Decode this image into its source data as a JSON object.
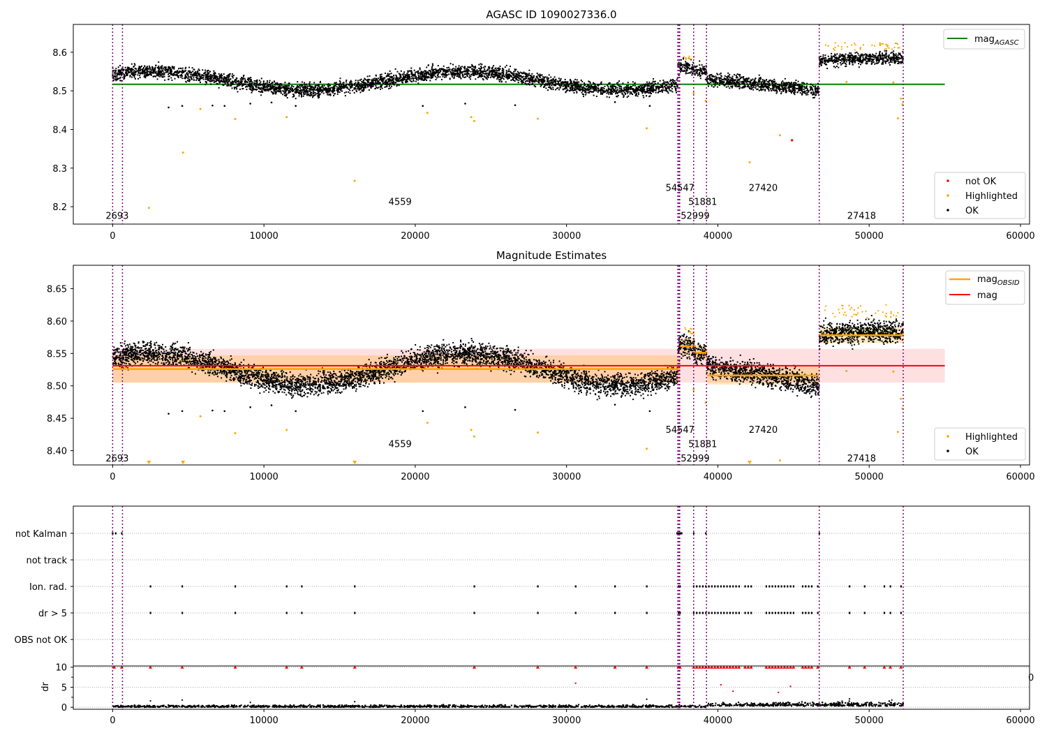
{
  "chart_data": [
    {
      "type": "scatter",
      "title": "AGASC ID 1090027336.0",
      "xlim": [
        -2600,
        60600
      ],
      "ylim": [
        8.155,
        8.672
      ],
      "x_ticks": [
        0,
        10000,
        20000,
        30000,
        40000,
        50000,
        60000
      ],
      "x_tick_labels": [
        "0",
        "10000",
        "20000",
        "30000",
        "40000",
        "50000",
        "60000"
      ],
      "y_ticks": [
        8.2,
        8.3,
        8.4,
        8.5,
        8.6
      ],
      "y_tick_labels": [
        "8.2",
        "8.3",
        "8.4",
        "8.5",
        "8.6"
      ],
      "legend_upper": {
        "position": "upper-right",
        "entries": [
          {
            "label": "mag",
            "subscript": "AGASC",
            "color": "#008000"
          }
        ]
      },
      "legend_lower": {
        "position": "lower-right",
        "entries": [
          {
            "label": "not OK",
            "color": "#ff0000"
          },
          {
            "label": "Highlighted",
            "color": "#ffa500"
          },
          {
            "label": "OK",
            "color": "#000000"
          }
        ]
      },
      "reference_line": {
        "name": "mag_AGASC",
        "y": 8.517,
        "x_range": [
          0,
          55000
        ],
        "color": "#008000"
      },
      "obsid_labels": [
        {
          "text": "2693",
          "x": 300,
          "y": 8.178
        },
        {
          "text": "4559",
          "x": 19000,
          "y": 8.214
        },
        {
          "text": "54547",
          "x": 37500,
          "y": 8.25
        },
        {
          "text": "51881",
          "x": 39000,
          "y": 8.214
        },
        {
          "text": "52999",
          "x": 38500,
          "y": 8.178
        },
        {
          "text": "27420",
          "x": 43000,
          "y": 8.25
        },
        {
          "text": "27418",
          "x": 49500,
          "y": 8.178
        }
      ],
      "highlighted_points": [
        [
          2400,
          8.197
        ],
        [
          4650,
          8.34
        ],
        [
          5800,
          8.453
        ],
        [
          8100,
          8.427
        ],
        [
          11500,
          8.432
        ],
        [
          16000,
          8.267
        ],
        [
          20800,
          8.443
        ],
        [
          23700,
          8.432
        ],
        [
          23900,
          8.422
        ],
        [
          28100,
          8.428
        ],
        [
          35300,
          8.403
        ],
        [
          38400,
          8.494
        ],
        [
          39200,
          8.474
        ],
        [
          42100,
          8.315
        ],
        [
          44100,
          8.385
        ],
        [
          48500,
          8.523
        ],
        [
          51600,
          8.522
        ],
        [
          51900,
          8.429
        ],
        [
          52100,
          8.48
        ],
        [
          52200,
          8.465
        ]
      ],
      "not_ok_points": [
        [
          44900,
          8.372
        ]
      ],
      "ok_outliers": [
        [
          3700,
          8.457
        ],
        [
          4600,
          8.461
        ],
        [
          6600,
          8.462
        ],
        [
          7400,
          8.461
        ],
        [
          9100,
          8.467
        ],
        [
          10500,
          8.47
        ],
        [
          12100,
          8.461
        ],
        [
          20500,
          8.461
        ],
        [
          23300,
          8.467
        ],
        [
          26600,
          8.463
        ],
        [
          33200,
          8.471
        ],
        [
          35500,
          8.461
        ]
      ]
    },
    {
      "type": "scatter",
      "title": "Magnitude Estimates",
      "xlim": [
        -2600,
        60600
      ],
      "ylim": [
        8.378,
        8.686
      ],
      "x_ticks": [
        0,
        10000,
        20000,
        30000,
        40000,
        50000,
        60000
      ],
      "x_tick_labels": [
        "0",
        "10000",
        "20000",
        "30000",
        "40000",
        "50000",
        "60000"
      ],
      "y_ticks": [
        8.4,
        8.45,
        8.5,
        8.55,
        8.6,
        8.65
      ],
      "y_tick_labels": [
        "8.40",
        "8.45",
        "8.50",
        "8.55",
        "8.60",
        "8.65"
      ],
      "legend_upper": {
        "position": "upper-right",
        "entries": [
          {
            "label": "mag",
            "subscript": "OBSID",
            "color": "#ffa500"
          },
          {
            "label": "mag",
            "color": "#ff0000"
          }
        ]
      },
      "legend_lower": {
        "position": "lower-right",
        "entries": [
          {
            "label": "Highlighted",
            "color": "#ffa500"
          },
          {
            "label": "OK",
            "color": "#000000"
          }
        ]
      },
      "mean_line": {
        "name": "mag",
        "y": 8.531,
        "x_range": [
          0,
          55000
        ],
        "band": [
          8.505,
          8.557
        ],
        "color": "#ff0000"
      },
      "obsid_segments": [
        {
          "x_range": [
            0,
            37500
          ],
          "mag": 8.526,
          "band": [
            8.505,
            8.547
          ]
        },
        {
          "x_range": [
            37500,
            38500
          ],
          "mag": 8.561,
          "band": [
            8.548,
            8.574
          ]
        },
        {
          "x_range": [
            38500,
            39300
          ],
          "mag": 8.551,
          "band": [
            8.54,
            8.562
          ]
        },
        {
          "x_range": [
            39300,
            46700
          ],
          "mag": 8.516,
          "band": [
            8.502,
            8.53
          ]
        },
        {
          "x_range": [
            46700,
            52300
          ],
          "mag": 8.578,
          "band": [
            8.566,
            8.59
          ]
        }
      ],
      "obsid_labels": [
        {
          "text": "2693",
          "x": 300,
          "y": 8.389
        },
        {
          "text": "4559",
          "x": 19000,
          "y": 8.411
        },
        {
          "text": "54547",
          "x": 37500,
          "y": 8.433
        },
        {
          "text": "51881",
          "x": 39000,
          "y": 8.411
        },
        {
          "text": "52999",
          "x": 38500,
          "y": 8.389
        },
        {
          "text": "27420",
          "x": 43000,
          "y": 8.433
        },
        {
          "text": "27418",
          "x": 49500,
          "y": 8.389
        }
      ],
      "highlighted_points": [
        [
          5800,
          8.453
        ],
        [
          8100,
          8.427
        ],
        [
          11500,
          8.432
        ],
        [
          20800,
          8.443
        ],
        [
          23700,
          8.432
        ],
        [
          23900,
          8.422
        ],
        [
          28100,
          8.428
        ],
        [
          35300,
          8.403
        ],
        [
          38400,
          8.494
        ],
        [
          39200,
          8.474
        ],
        [
          44100,
          8.385
        ],
        [
          48500,
          8.523
        ],
        [
          51600,
          8.522
        ],
        [
          51900,
          8.429
        ],
        [
          52100,
          8.48
        ],
        [
          52200,
          8.465
        ]
      ],
      "clipped_low_points": [
        2400,
        4650,
        16000,
        42100
      ],
      "ok_outliers": [
        [
          3700,
          8.457
        ],
        [
          4600,
          8.461
        ],
        [
          6600,
          8.462
        ],
        [
          7400,
          8.461
        ],
        [
          9100,
          8.467
        ],
        [
          10500,
          8.47
        ],
        [
          12100,
          8.461
        ],
        [
          20500,
          8.461
        ],
        [
          23300,
          8.467
        ],
        [
          26600,
          8.463
        ],
        [
          33200,
          8.471
        ],
        [
          35500,
          8.461
        ]
      ]
    },
    {
      "type": "scatter",
      "title": "",
      "xlim": [
        -2600,
        60600
      ],
      "categories": [
        "not Kalman",
        "not track",
        "Ion. rad.",
        "dr > 5",
        "OBS not OK"
      ],
      "flag_points": {
        "not Kalman": [
          0,
          200,
          600,
          37300,
          37350,
          37400,
          37450,
          37500,
          37550,
          37600,
          38400,
          39200,
          46700
        ],
        "not track": [],
        "Ion. rad.": [
          2500,
          4600,
          8100,
          11500,
          12500,
          16000,
          23900,
          28100,
          30600,
          33200,
          35300,
          37400,
          37500,
          38400,
          38600,
          38800,
          39000,
          39200,
          39400,
          39600,
          39800,
          40000,
          40200,
          40400,
          40600,
          40800,
          41000,
          41200,
          41400,
          41800,
          42000,
          42200,
          43200,
          43400,
          43600,
          43800,
          44000,
          44200,
          44400,
          44600,
          44800,
          45000,
          45600,
          45800,
          46000,
          46200,
          46600,
          48700,
          49700,
          51000,
          51400,
          52100
        ],
        "dr > 5": [
          2500,
          4600,
          8100,
          11500,
          12500,
          16000,
          23900,
          28100,
          30600,
          33200,
          35300,
          37400,
          37500,
          38400,
          38600,
          38800,
          39000,
          39200,
          39400,
          39600,
          39800,
          40000,
          40200,
          40400,
          40600,
          40800,
          41000,
          41200,
          41400,
          41800,
          42000,
          42200,
          43200,
          43400,
          43600,
          43800,
          44000,
          44200,
          44400,
          44600,
          44800,
          45000,
          45600,
          45800,
          46000,
          46200,
          46600,
          48700,
          49700,
          51000,
          51400,
          52100
        ],
        "OBS not OK": []
      },
      "dr_panel": {
        "ylabel": "dr",
        "ylim": [
          -0.5,
          10.3
        ],
        "y_ticks": [
          0,
          5,
          10
        ],
        "y_tick_labels": [
          "0",
          "5",
          "10"
        ],
        "x_ticks": [
          0,
          10000,
          20000,
          30000,
          40000,
          50000,
          60000
        ],
        "x_tick_labels": [
          "0",
          "10000",
          "20000",
          "30000",
          "40000",
          "50000",
          "60000"
        ],
        "clipped_points": [
          100,
          600,
          2500,
          4600,
          8100,
          11500,
          12500,
          16000,
          23900,
          28100,
          30600,
          33200,
          35300,
          37400,
          37500,
          38400,
          38600,
          38800,
          39000,
          39200,
          39400,
          39600,
          39800,
          40000,
          40200,
          40400,
          40600,
          40800,
          41000,
          41200,
          41400,
          41800,
          42000,
          42200,
          43200,
          43400,
          43600,
          43800,
          44000,
          44200,
          44400,
          44600,
          44800,
          45000,
          45600,
          45800,
          46000,
          46200,
          46600,
          48700,
          49700,
          51000,
          51400,
          52100
        ],
        "red_points": [
          [
            30600,
            6.0
          ],
          [
            40200,
            5.6
          ],
          [
            41000,
            4.0
          ],
          [
            44000,
            3.7
          ],
          [
            44800,
            5.2
          ]
        ],
        "stray_label": "0"
      }
    }
  ],
  "segment_boundaries": [
    0,
    650,
    37350,
    37430,
    37480,
    38400,
    39250,
    46700,
    52250
  ]
}
